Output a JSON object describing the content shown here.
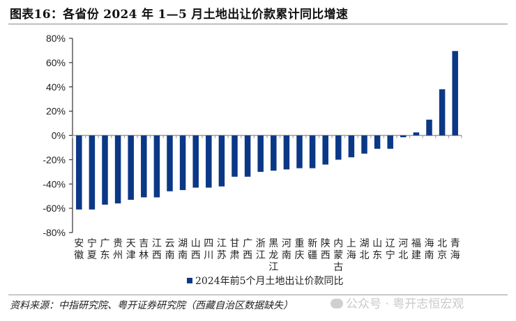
{
  "header": {
    "title": "图表16：各省份 2024 年 1—5 月土地出让价款累计同比增速"
  },
  "footer": {
    "source": "资料来源：中指研究院、粤开证券研究院（西藏自治区数据缺失）",
    "watermark": "公众号 · 粤开志恒宏观"
  },
  "colors": {
    "bar": "#0B3886",
    "axis": "#333333",
    "tick": "#999999"
  },
  "chart_data": {
    "type": "bar",
    "title": "各省份 2024 年 1—5 月土地出让价款累计同比增速",
    "xlabel": "",
    "ylabel": "",
    "ylim": [
      -80,
      80
    ],
    "yticks": [
      80,
      60,
      40,
      20,
      0,
      -20,
      -40,
      -60,
      -80
    ],
    "ytick_labels": [
      "80%",
      "60%",
      "40%",
      "20%",
      "0%",
      "-20%",
      "-40%",
      "-60%",
      "-80%"
    ],
    "grid": false,
    "legend_position": "bottom-center",
    "categories": [
      "安徽",
      "宁夏",
      "广东",
      "贵州",
      "天津",
      "吉林",
      "江西",
      "云南",
      "湖南",
      "山西",
      "四川",
      "江苏",
      "甘肃",
      "广西",
      "浙江",
      "黑龙江",
      "河南",
      "重庆",
      "新疆",
      "陕西",
      "内蒙古",
      "上海",
      "湖北",
      "山东",
      "辽宁",
      "河北",
      "福建",
      "海南",
      "北京",
      "青海"
    ],
    "series": [
      {
        "name": "2024年前5个月土地出让价款同比",
        "values": [
          -61,
          -61,
          -57,
          -56,
          -53,
          -51,
          -51,
          -46,
          -45,
          -43,
          -43,
          -42,
          -34,
          -34,
          -30,
          -29,
          -28,
          -27,
          -27,
          -24,
          -20,
          -18,
          -15,
          -11,
          -11,
          -1.5,
          2.5,
          13,
          38,
          69.5
        ]
      }
    ]
  }
}
